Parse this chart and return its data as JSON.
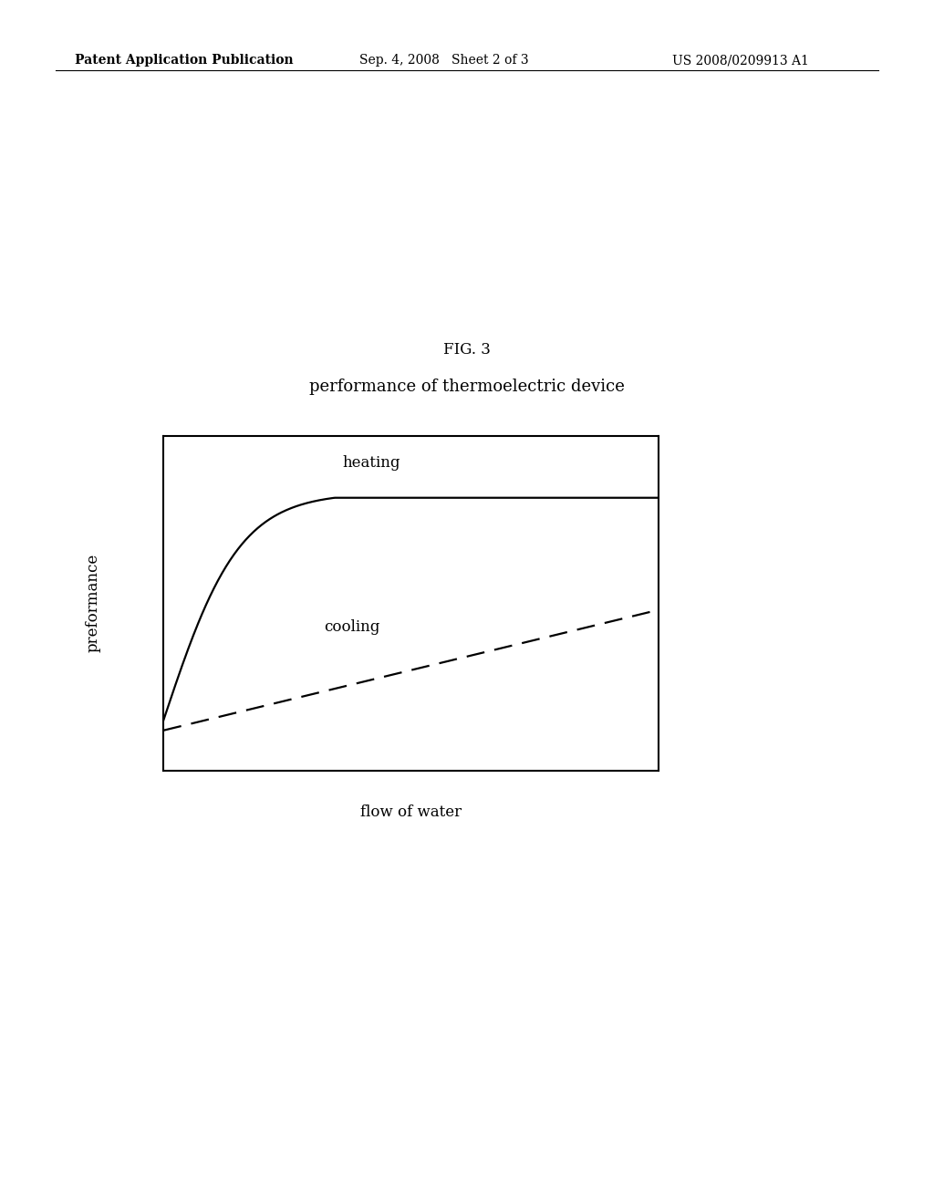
{
  "fig_label": "FIG. 3",
  "chart_title": "performance of thermoelectric device",
  "ylabel": "preformance",
  "xlabel": "flow of water",
  "heating_label": "heating",
  "cooling_label": "cooling",
  "header_left": "Patent Application Publication",
  "header_center": "Sep. 4, 2008   Sheet 2 of 3",
  "header_right": "US 2008/0209913 A1",
  "bg_color": "#ffffff",
  "line_color": "#000000",
  "fig_width": 10.24,
  "fig_height": 13.2
}
